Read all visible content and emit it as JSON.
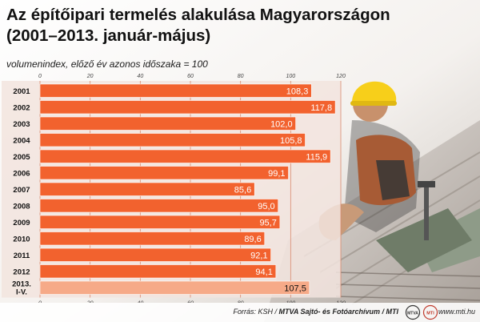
{
  "title": {
    "line1": "Az építőipari termelés alakulása Magyarországon",
    "line2": "(2001–2013. január-május)"
  },
  "subtitle": "volumenindex, előző év azonos időszaka = 100",
  "colors": {
    "bar": "#f2622e",
    "bar_last": "#f6aa88",
    "grid": "#d98a6e",
    "band": "#f2e4de"
  },
  "chart_data": {
    "type": "bar",
    "orientation": "horizontal",
    "categories": [
      "2001",
      "2002",
      "2003",
      "2004",
      "2005",
      "2006",
      "2007",
      "2008",
      "2009",
      "2010",
      "2011",
      "2012",
      "2013.\nI-V."
    ],
    "values": [
      108.3,
      117.8,
      102.0,
      105.8,
      115.9,
      99.1,
      85.6,
      95.0,
      95.7,
      89.6,
      92.1,
      94.1,
      107.5
    ],
    "value_labels": [
      "108,3",
      "117,8",
      "102,0",
      "105,8",
      "115,9",
      "99,1",
      "85,6",
      "95,0",
      "95,7",
      "89,6",
      "92,1",
      "94,1",
      "107,5"
    ],
    "xlim": [
      0,
      120
    ],
    "ticks": [
      0,
      20,
      40,
      60,
      80,
      100,
      120
    ],
    "tick_positions": [
      "top",
      "bottom"
    ],
    "grid": true
  },
  "footer": {
    "source_prefix": "Forrás: KSH / ",
    "source_bold": "MTVA Sajtó- és Fotóarchívum / MTI",
    "site": "www.mti.hu",
    "logo1_text": "MTVA",
    "logo2_text": "MTI"
  }
}
